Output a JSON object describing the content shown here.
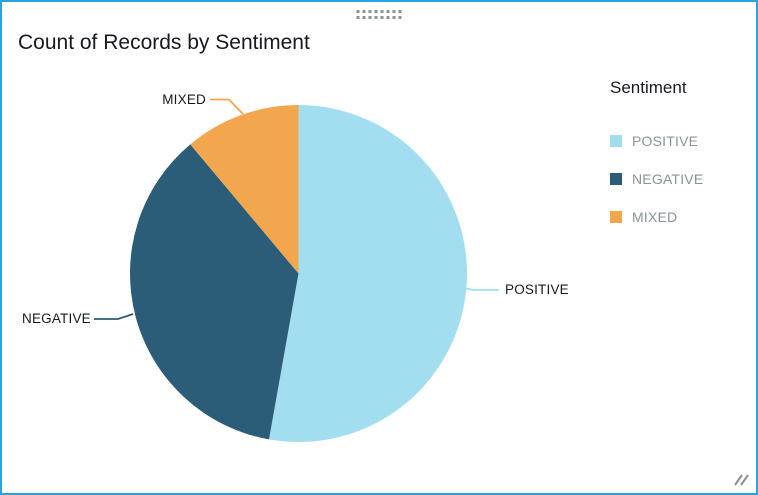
{
  "visual": {
    "title": "Count of Records by Sentiment"
  },
  "legend": {
    "title": "Sentiment"
  },
  "chart_data": {
    "type": "pie",
    "title": "Count of Records by Sentiment",
    "legend_title": "Sentiment",
    "legend_position": "right",
    "start_angle": "12-oclock",
    "direction": "clockwise",
    "slices": [
      {
        "name": "POSITIVE",
        "percent": 52.8,
        "color": "#A2DEF0"
      },
      {
        "name": "NEGATIVE",
        "percent": 36.1,
        "color": "#2B5C78"
      },
      {
        "name": "MIXED",
        "percent": 11.1,
        "color": "#F2A64E"
      }
    ],
    "callout_labels": [
      "MIXED",
      "NEGATIVE",
      "POSITIVE"
    ]
  },
  "colors": {
    "card_border": "#29A3DC",
    "title_text": "#16191F",
    "legend_label_text": "#879499",
    "handle_gray": "#8D9296",
    "background": "#FFFFFF"
  }
}
